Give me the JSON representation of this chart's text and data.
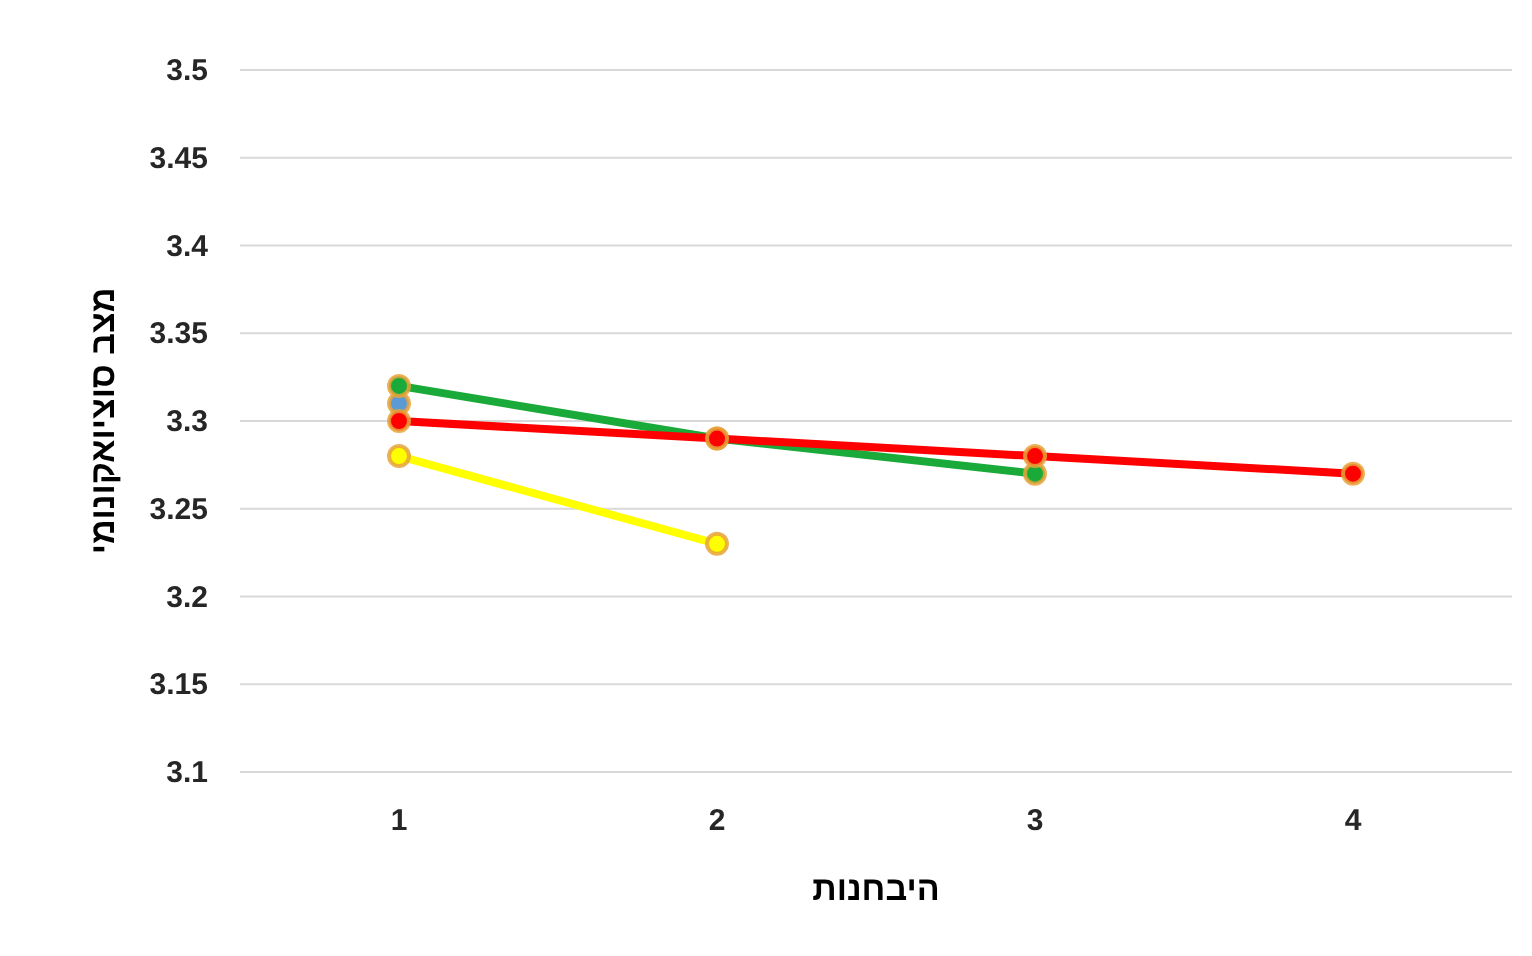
{
  "chart_data": {
    "type": "line",
    "xlabel": "היבחנות",
    "ylabel": "מצב סוציואקונומי",
    "categories": [
      "1",
      "2",
      "3",
      "4"
    ],
    "series": [
      {
        "color": "#5b9bd5",
        "values": [
          3.31,
          null,
          null,
          null
        ]
      },
      {
        "color": "#1aaa3a",
        "values": [
          3.32,
          3.29,
          3.27,
          null
        ]
      },
      {
        "color": "#ff0000",
        "values": [
          3.3,
          3.29,
          3.28,
          3.27
        ]
      },
      {
        "color": "#ffff00",
        "values": [
          3.28,
          3.23,
          null,
          null
        ]
      }
    ],
    "ylim": [
      3.1,
      3.5
    ],
    "yticks": [
      3.1,
      3.15,
      3.2,
      3.25,
      3.3,
      3.35,
      3.4,
      3.45,
      3.5
    ],
    "grid": "y",
    "marker": "circle",
    "line_style": "solid"
  }
}
